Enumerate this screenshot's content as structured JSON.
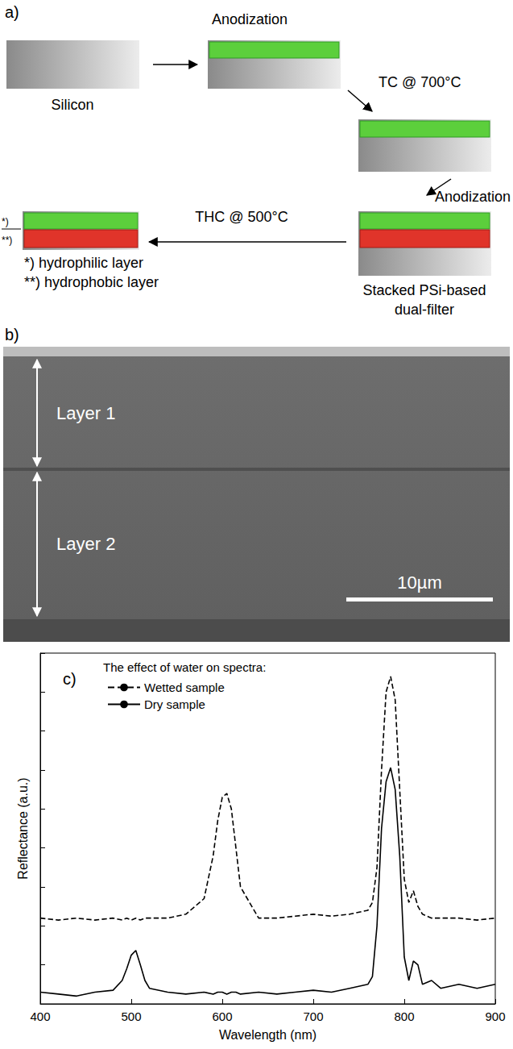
{
  "diagram": {
    "panel": "a)",
    "start": "Silicon",
    "arrows": [
      "Anodization",
      "TC @ 700°C",
      "Anodization",
      "THC @ 500°C"
    ],
    "stack_label": [
      "Stacked PSi-based",
      "dual-filter"
    ],
    "layer_marks": [
      "*)",
      "**)"
    ],
    "layer_legend": [
      "*) hydrophilic layer",
      "**) hydrophobic layer"
    ]
  },
  "micrograph": {
    "panel": "b)",
    "layers": [
      "Layer 1",
      "Layer 2"
    ],
    "scale_bar": "10µm"
  },
  "chart_data": {
    "type": "line",
    "panel_label": "c)",
    "legend_title": "The effect of water on spectra:",
    "x_label": "Wavelength (nm)",
    "y_label": "Reflectance (a.u.)",
    "x": [
      400,
      420,
      440,
      460,
      480,
      490,
      495,
      500,
      505,
      510,
      515,
      520,
      540,
      560,
      580,
      590,
      595,
      600,
      605,
      610,
      615,
      620,
      640,
      660,
      680,
      700,
      720,
      740,
      760,
      765,
      770,
      775,
      780,
      785,
      790,
      795,
      800,
      805,
      810,
      815,
      820,
      830,
      840,
      860,
      880,
      900
    ],
    "series": [
      {
        "name": "Wetted sample",
        "color": "#000000",
        "line_style": "dashed",
        "values": [
          2.2,
          2.15,
          2.2,
          2.15,
          2.2,
          2.15,
          2.2,
          2.15,
          2.2,
          2.15,
          2.2,
          2.2,
          2.2,
          2.3,
          2.7,
          3.8,
          4.7,
          5.3,
          5.4,
          5.0,
          4.0,
          3.0,
          2.2,
          2.2,
          2.25,
          2.3,
          2.25,
          2.3,
          2.4,
          2.6,
          3.5,
          6.0,
          8.0,
          8.4,
          7.8,
          5.5,
          3.2,
          2.6,
          2.9,
          2.5,
          2.3,
          2.2,
          2.2,
          2.2,
          2.15,
          2.2
        ]
      },
      {
        "name": "Dry sample",
        "color": "#000000",
        "line_style": "solid",
        "values": [
          0.3,
          0.25,
          0.2,
          0.3,
          0.35,
          0.6,
          0.9,
          1.25,
          1.37,
          1.0,
          0.6,
          0.4,
          0.3,
          0.25,
          0.3,
          0.25,
          0.3,
          0.3,
          0.25,
          0.3,
          0.3,
          0.25,
          0.3,
          0.25,
          0.3,
          0.35,
          0.3,
          0.4,
          0.5,
          0.7,
          2.0,
          4.5,
          5.7,
          6.06,
          5.5,
          3.8,
          1.2,
          0.6,
          1.1,
          1.0,
          0.5,
          0.6,
          0.4,
          0.5,
          0.4,
          0.5
        ]
      }
    ],
    "xlim": [
      400,
      900
    ],
    "xticks": [
      400,
      500,
      600,
      700,
      800,
      900
    ],
    "ylim": [
      0,
      9
    ],
    "yticks": [
      0,
      1,
      2,
      3,
      4,
      5,
      6,
      7,
      8,
      9
    ],
    "tick_labels": "x",
    "grid": false,
    "legend": "upper left"
  }
}
